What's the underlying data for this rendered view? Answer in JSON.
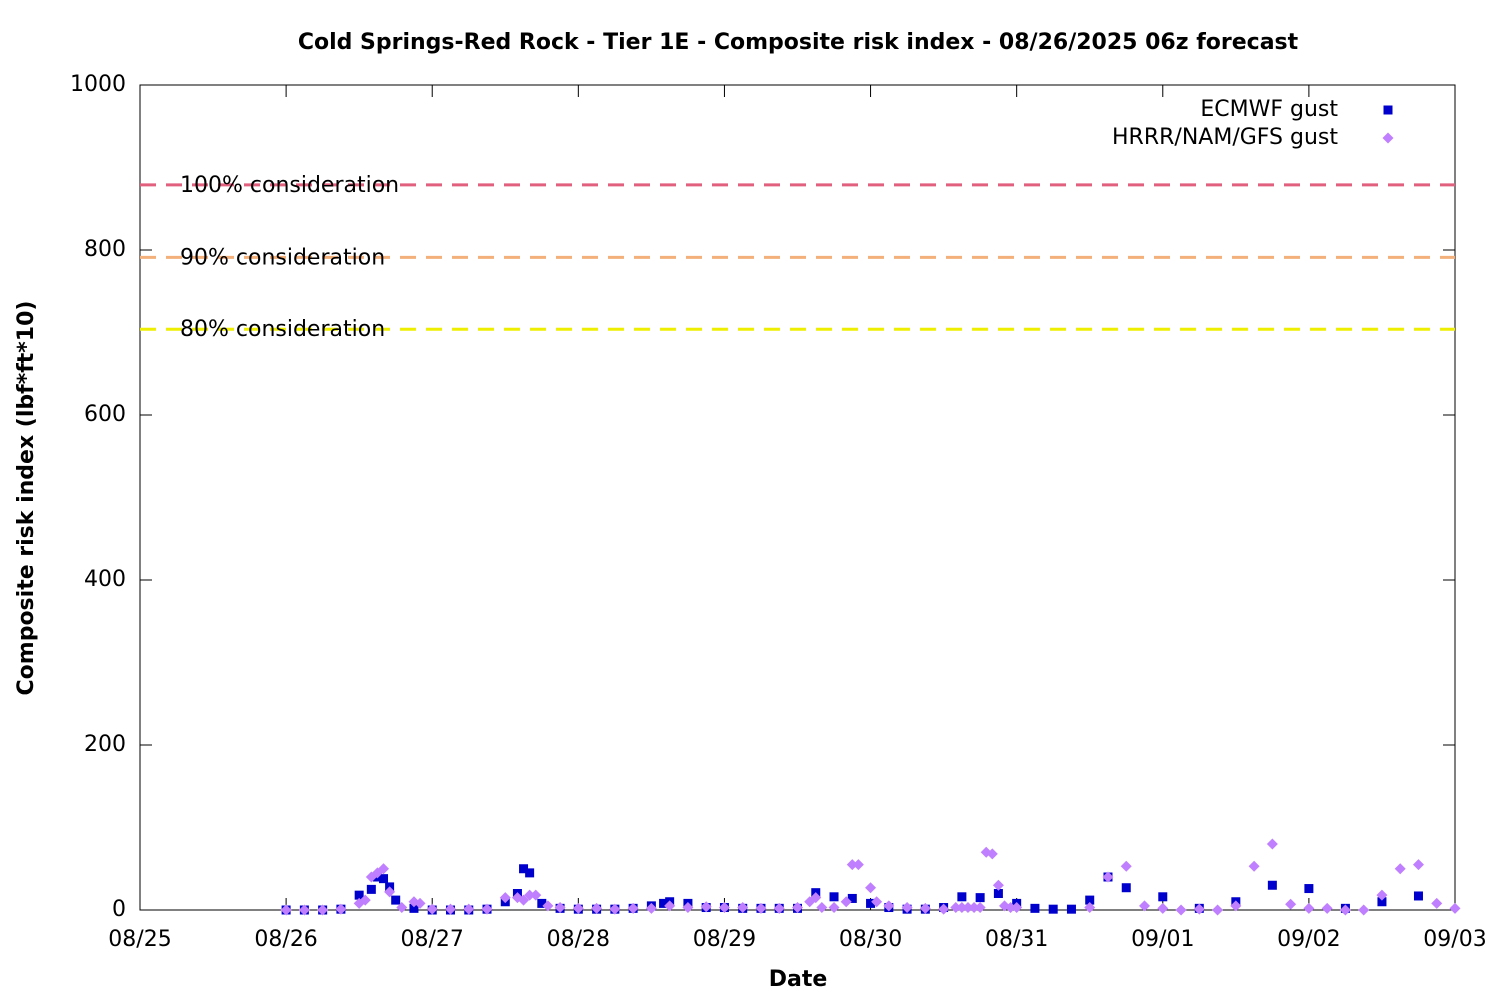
{
  "chart_data": {
    "type": "scatter",
    "title": "Cold Springs-Red Rock - Tier 1E - Composite risk index - 08/26/2025 06z forecast",
    "x_label": "Date",
    "y_label": "Composite risk index (lbf*ft*10)",
    "xlim": [
      "2025-08-25T00:00",
      "2025-09-03T00:00"
    ],
    "xticks": [
      {
        "value": "2025-08-25T00:00",
        "label": "08/25"
      },
      {
        "value": "2025-08-26T00:00",
        "label": "08/26"
      },
      {
        "value": "2025-08-27T00:00",
        "label": "08/27"
      },
      {
        "value": "2025-08-28T00:00",
        "label": "08/28"
      },
      {
        "value": "2025-08-29T00:00",
        "label": "08/29"
      },
      {
        "value": "2025-08-30T00:00",
        "label": "08/30"
      },
      {
        "value": "2025-08-31T00:00",
        "label": "08/31"
      },
      {
        "value": "2025-09-01T00:00",
        "label": "09/01"
      },
      {
        "value": "2025-09-02T00:00",
        "label": "09/02"
      },
      {
        "value": "2025-09-03T00:00",
        "label": "09/03"
      }
    ],
    "ylim": [
      0,
      1000
    ],
    "yticks": [
      0,
      200,
      400,
      600,
      800,
      1000
    ],
    "legend": "top-right",
    "reference_lines": [
      {
        "label": "100% consideration",
        "value": 879,
        "color": "#e0607e"
      },
      {
        "label": "90% consideration",
        "value": 791,
        "color": "#f4b07a"
      },
      {
        "label": "80% consideration",
        "value": 704,
        "color": "#eeee00"
      }
    ],
    "series": [
      {
        "name": "ECMWF gust",
        "color": "#0000cc",
        "marker": "square",
        "x": [
          "2025-08-26T00:00",
          "2025-08-26T03:00",
          "2025-08-26T06:00",
          "2025-08-26T09:00",
          "2025-08-26T12:00",
          "2025-08-26T14:00",
          "2025-08-26T15:00",
          "2025-08-26T16:00",
          "2025-08-26T17:00",
          "2025-08-26T18:00",
          "2025-08-26T21:00",
          "2025-08-27T00:00",
          "2025-08-27T03:00",
          "2025-08-27T06:00",
          "2025-08-27T09:00",
          "2025-08-27T12:00",
          "2025-08-27T14:00",
          "2025-08-27T15:00",
          "2025-08-27T16:00",
          "2025-08-27T18:00",
          "2025-08-27T21:00",
          "2025-08-28T00:00",
          "2025-08-28T03:00",
          "2025-08-28T06:00",
          "2025-08-28T09:00",
          "2025-08-28T12:00",
          "2025-08-28T14:00",
          "2025-08-28T15:00",
          "2025-08-28T18:00",
          "2025-08-28T21:00",
          "2025-08-29T00:00",
          "2025-08-29T03:00",
          "2025-08-29T06:00",
          "2025-08-29T09:00",
          "2025-08-29T12:00",
          "2025-08-29T15:00",
          "2025-08-29T18:00",
          "2025-08-29T21:00",
          "2025-08-30T00:00",
          "2025-08-30T03:00",
          "2025-08-30T06:00",
          "2025-08-30T09:00",
          "2025-08-30T12:00",
          "2025-08-30T15:00",
          "2025-08-30T18:00",
          "2025-08-30T21:00",
          "2025-08-31T00:00",
          "2025-08-31T03:00",
          "2025-08-31T06:00",
          "2025-08-31T09:00",
          "2025-08-31T12:00",
          "2025-08-31T15:00",
          "2025-08-31T18:00",
          "2025-09-01T00:00",
          "2025-09-01T06:00",
          "2025-09-01T12:00",
          "2025-09-01T18:00",
          "2025-09-02T00:00",
          "2025-09-02T06:00",
          "2025-09-02T12:00",
          "2025-09-02T18:00"
        ],
        "values": [
          0,
          0,
          0,
          1,
          18,
          25,
          40,
          38,
          28,
          12,
          2,
          0,
          0,
          0,
          1,
          10,
          20,
          50,
          45,
          8,
          2,
          1,
          1,
          1,
          2,
          5,
          8,
          10,
          8,
          3,
          3,
          2,
          2,
          2,
          2,
          21,
          16,
          14,
          8,
          3,
          1,
          1,
          3,
          16,
          15,
          20,
          8,
          2,
          1,
          1,
          12,
          40,
          27,
          16,
          2,
          10,
          30,
          26,
          2,
          10,
          17
        ]
      },
      {
        "name": "HRRR/NAM/GFS gust",
        "color": "#bf7fff",
        "marker": "diamond",
        "x": [
          "2025-08-26T00:00",
          "2025-08-26T03:00",
          "2025-08-26T06:00",
          "2025-08-26T09:00",
          "2025-08-26T12:00",
          "2025-08-26T13:00",
          "2025-08-26T14:00",
          "2025-08-26T15:00",
          "2025-08-26T16:00",
          "2025-08-26T17:00",
          "2025-08-26T19:00",
          "2025-08-26T21:00",
          "2025-08-26T22:00",
          "2025-08-27T00:00",
          "2025-08-27T03:00",
          "2025-08-27T06:00",
          "2025-08-27T09:00",
          "2025-08-27T12:00",
          "2025-08-27T14:00",
          "2025-08-27T15:00",
          "2025-08-27T16:00",
          "2025-08-27T17:00",
          "2025-08-27T19:00",
          "2025-08-27T21:00",
          "2025-08-28T00:00",
          "2025-08-28T03:00",
          "2025-08-28T06:00",
          "2025-08-28T09:00",
          "2025-08-28T12:00",
          "2025-08-28T15:00",
          "2025-08-28T18:00",
          "2025-08-28T21:00",
          "2025-08-29T00:00",
          "2025-08-29T03:00",
          "2025-08-29T06:00",
          "2025-08-29T09:00",
          "2025-08-29T12:00",
          "2025-08-29T14:00",
          "2025-08-29T15:00",
          "2025-08-29T16:00",
          "2025-08-29T18:00",
          "2025-08-29T20:00",
          "2025-08-29T21:00",
          "2025-08-29T22:00",
          "2025-08-30T00:00",
          "2025-08-30T01:00",
          "2025-08-30T03:00",
          "2025-08-30T06:00",
          "2025-08-30T09:00",
          "2025-08-30T12:00",
          "2025-08-30T14:00",
          "2025-08-30T15:00",
          "2025-08-30T16:00",
          "2025-08-30T17:00",
          "2025-08-30T18:00",
          "2025-08-30T19:00",
          "2025-08-30T20:00",
          "2025-08-30T21:00",
          "2025-08-30T22:00",
          "2025-08-30T23:00",
          "2025-08-31T00:00",
          "2025-08-31T12:00",
          "2025-08-31T15:00",
          "2025-08-31T18:00",
          "2025-08-31T21:00",
          "2025-09-01T00:00",
          "2025-09-01T03:00",
          "2025-09-01T06:00",
          "2025-09-01T09:00",
          "2025-09-01T12:00",
          "2025-09-01T15:00",
          "2025-09-01T18:00",
          "2025-09-01T21:00",
          "2025-09-02T00:00",
          "2025-09-02T03:00",
          "2025-09-02T06:00",
          "2025-09-02T09:00",
          "2025-09-02T12:00",
          "2025-09-02T15:00",
          "2025-09-02T18:00",
          "2025-09-02T21:00",
          "2025-09-03T00:00"
        ],
        "values": [
          0,
          0,
          0,
          1,
          8,
          12,
          40,
          45,
          50,
          22,
          3,
          10,
          8,
          1,
          1,
          1,
          1,
          15,
          15,
          12,
          18,
          18,
          5,
          3,
          2,
          2,
          1,
          2,
          2,
          5,
          3,
          4,
          3,
          3,
          2,
          2,
          3,
          10,
          15,
          3,
          3,
          10,
          55,
          55,
          27,
          10,
          5,
          3,
          2,
          1,
          3,
          3,
          3,
          3,
          3,
          70,
          68,
          30,
          5,
          3,
          3,
          3,
          40,
          53,
          5,
          2,
          0,
          1,
          0,
          5,
          53,
          80,
          7,
          2,
          2,
          0,
          0,
          18,
          50,
          55,
          8,
          2
        ]
      }
    ]
  }
}
